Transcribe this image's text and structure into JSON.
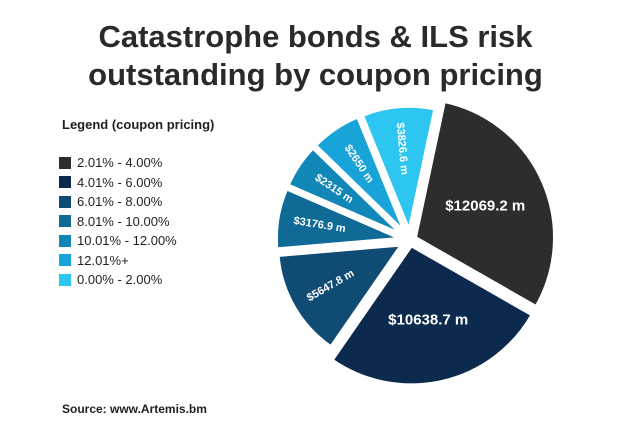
{
  "title": [
    "Catastrophe bonds & ILS risk",
    "outstanding by coupon pricing"
  ],
  "legend_title": "Legend (coupon pricing)",
  "source": "Source: www.Artemis.bm",
  "chart_data": {
    "type": "pie",
    "categories": [
      "2.01% - 4.00%",
      "4.01% - 6.00%",
      "6.01% - 8.00%",
      "8.01% - 10.00%",
      "10.01% - 12.00%",
      "12.01%+",
      "0.00% - 2.00%"
    ],
    "values": [
      12069.2,
      10638.7,
      5647.8,
      3176.9,
      2315,
      2650,
      3826.6
    ],
    "data_labels": [
      "$12069.2 m",
      "$10638.7 m",
      "$5647.8 m",
      "$3176.9 m",
      "$2315 m",
      "$2650 m",
      "$3826.6 m"
    ],
    "colors": [
      "#2d2d2d",
      "#0b2a4e",
      "#0f4b72",
      "#0f6a96",
      "#1187b8",
      "#18a4d9",
      "#2cc6f0"
    ],
    "legend_placement": "left"
  }
}
